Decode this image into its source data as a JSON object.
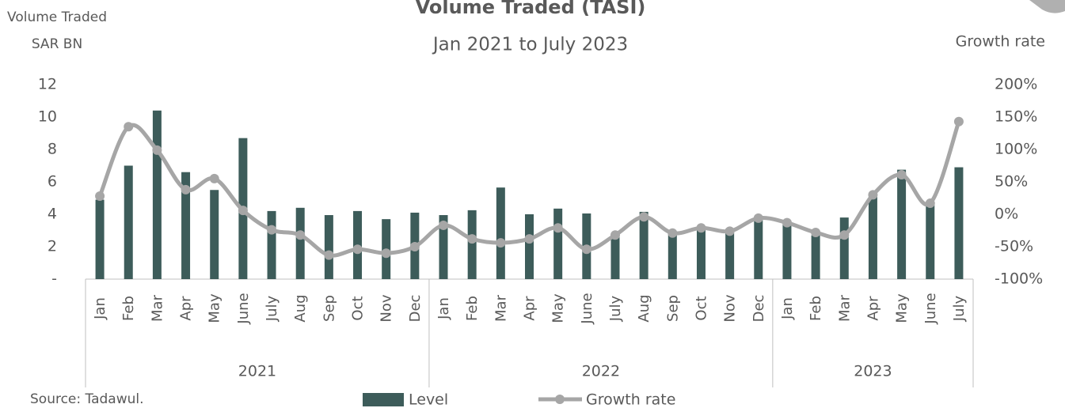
{
  "chart_data": {
    "type": "bar_line",
    "title": "Volume Traded (TASI)",
    "subtitle": "Jan 2021 to July 2023",
    "y_label": [
      "Volume Traded",
      "SAR BN"
    ],
    "y2_label": "Growth rate",
    "source": "Source: Tadawul.",
    "category_groups": [
      {
        "label": "2021",
        "categories": [
          "Jan",
          "Feb",
          "Mar",
          "Apr",
          "May",
          "June",
          "July",
          "Aug",
          "Sep",
          "Oct",
          "Nov",
          "Dec"
        ]
      },
      {
        "label": "2022",
        "categories": [
          "Jan",
          "Feb",
          "Mar",
          "Apr",
          "May",
          "June",
          "July",
          "Aug",
          "Sep",
          "Oct",
          "Nov",
          "Dec"
        ]
      },
      {
        "label": "2023",
        "categories": [
          "Jan",
          "Feb",
          "Mar",
          "Apr",
          "May",
          "June",
          "July"
        ]
      }
    ],
    "series": [
      {
        "name": "Level",
        "kind": "bar",
        "color": "#3d5c5a",
        "values": [
          4.9,
          7.0,
          10.4,
          6.6,
          5.5,
          8.7,
          4.2,
          4.4,
          3.95,
          4.2,
          3.7,
          4.1,
          3.95,
          4.25,
          5.65,
          4.0,
          4.35,
          4.05,
          2.7,
          4.15,
          2.9,
          3.2,
          3.1,
          3.7,
          3.5,
          2.7,
          3.8,
          5.2,
          6.75,
          4.6,
          6.9
        ]
      },
      {
        "name": "Growth rate",
        "kind": "line",
        "axis": "y2",
        "color": "#a6a6a6",
        "values": [
          28,
          135,
          99,
          38,
          55,
          6,
          -24,
          -32,
          -63,
          -54,
          -60,
          -50,
          -17,
          -38,
          -44,
          -38,
          -21,
          -54,
          -32,
          -4,
          -29,
          -21,
          -26,
          -6,
          -13,
          -28,
          -32,
          30,
          61,
          17,
          143
        ]
      }
    ],
    "ylim": [
      0,
      12
    ],
    "yticks": [
      {
        "value": 0,
        "label": "-"
      },
      2,
      4,
      6,
      8,
      10,
      12
    ],
    "y2lim": [
      -100,
      200
    ],
    "y2ticks": [
      {
        "value": -100,
        "label": "-100%"
      },
      {
        "value": -50,
        "label": "-50%"
      },
      {
        "value": 0,
        "label": "0%"
      },
      {
        "value": 50,
        "label": "50%"
      },
      {
        "value": 100,
        "label": "100%"
      },
      {
        "value": 150,
        "label": "150%"
      },
      {
        "value": 200,
        "label": "200%"
      }
    ],
    "legend": "bottom"
  }
}
